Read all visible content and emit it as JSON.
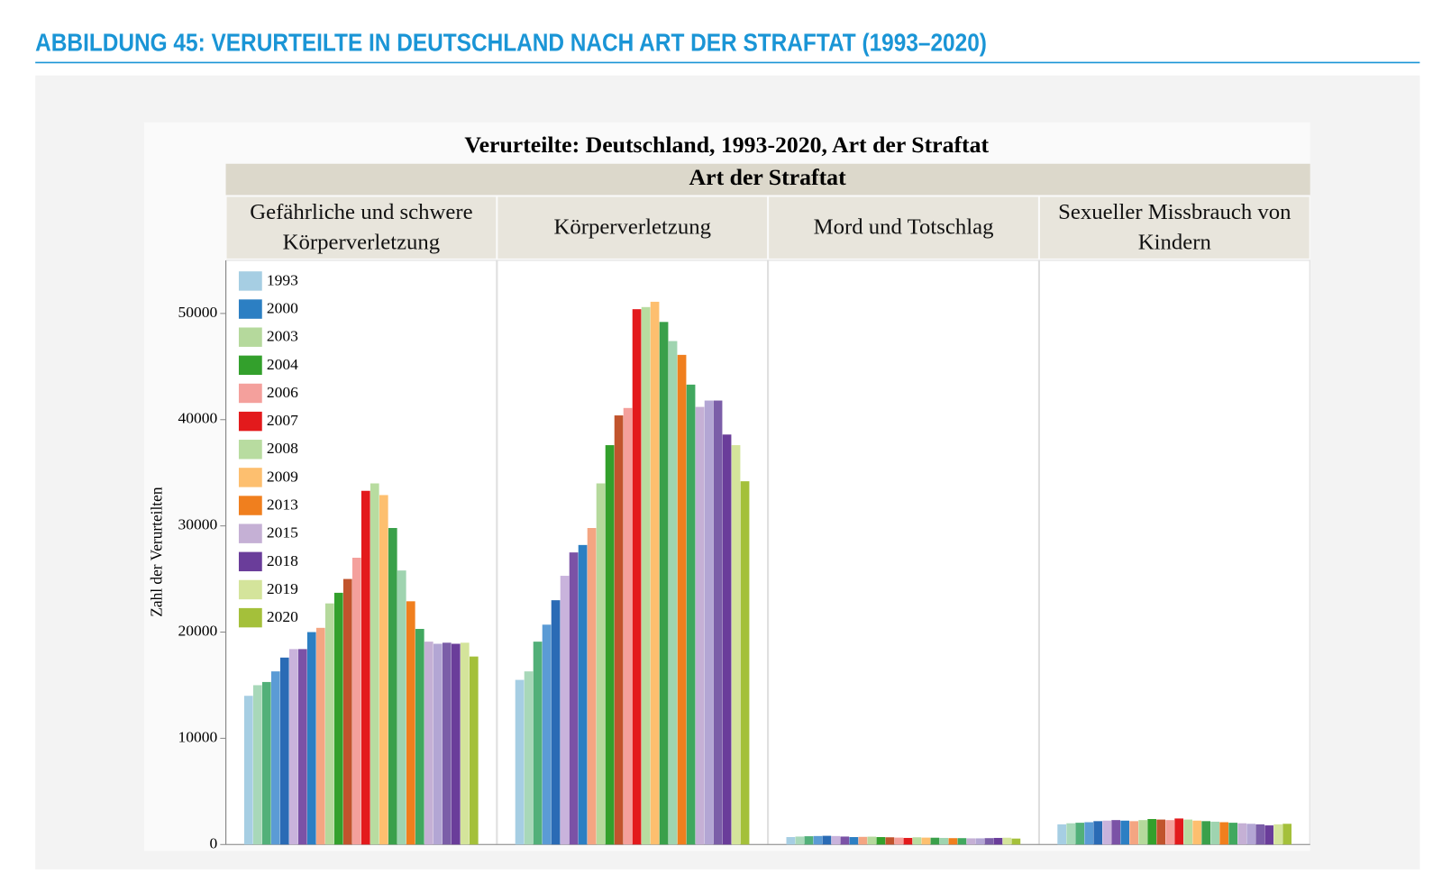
{
  "header": {
    "title": "ABBILDUNG 45: VERURTEILTE IN DEUTSCHLAND NACH ART DER STRAFTAT (1993–2020)"
  },
  "chart_data": {
    "type": "bar",
    "title": "Verurteilte: Deutschland, 1993-2020, Art der Straftat",
    "facet_title": "Art der Straftat",
    "categories": [
      "Gefährliche und schwere Körperverletzung",
      "Körperverletzung",
      "Mord und Totschlag",
      "Sexueller Missbrauch von Kindern"
    ],
    "ylabel": "Zahl der Verurteilten",
    "ylim": [
      0,
      55000
    ],
    "yticks": [
      0,
      10000,
      20000,
      30000,
      40000,
      50000
    ],
    "legend": "top-left",
    "series": [
      {
        "name": "1993",
        "color": "#a6cee3",
        "values": [
          14000,
          15500,
          700,
          1900
        ]
      },
      {
        "name": null,
        "color": "#a8d8b9",
        "values": [
          15000,
          16300,
          750,
          2000
        ]
      },
      {
        "name": null,
        "color": "#52b079",
        "values": [
          15300,
          19100,
          780,
          2050
        ]
      },
      {
        "name": null,
        "color": "#5b9bd5",
        "values": [
          16300,
          20700,
          800,
          2100
        ]
      },
      {
        "name": null,
        "color": "#2a6bb5",
        "values": [
          17600,
          23000,
          820,
          2200
        ]
      },
      {
        "name": null,
        "color": "#c9b3dc",
        "values": [
          18400,
          25300,
          800,
          2250
        ]
      },
      {
        "name": null,
        "color": "#7b52a6",
        "values": [
          18400,
          27500,
          750,
          2300
        ]
      },
      {
        "name": "2000",
        "color": "#2c7fc3",
        "values": [
          20000,
          28200,
          700,
          2250
        ]
      },
      {
        "name": null,
        "color": "#f4a582",
        "values": [
          20400,
          29800,
          720,
          2200
        ]
      },
      {
        "name": "2003",
        "color": "#b5d99c",
        "values": [
          22700,
          34000,
          740,
          2300
        ]
      },
      {
        "name": "2004",
        "color": "#33a02c",
        "values": [
          23700,
          37600,
          700,
          2400
        ]
      },
      {
        "name": null,
        "color": "#c1542d",
        "values": [
          25000,
          40400,
          680,
          2350
        ]
      },
      {
        "name": "2006",
        "color": "#f4a09c",
        "values": [
          27000,
          41100,
          650,
          2300
        ]
      },
      {
        "name": "2007",
        "color": "#e31a1c",
        "values": [
          33300,
          50400,
          620,
          2450
        ]
      },
      {
        "name": "2008",
        "color": "#b8dca0",
        "values": [
          34000,
          50600,
          680,
          2350
        ]
      },
      {
        "name": "2009",
        "color": "#fdbf6f",
        "values": [
          32900,
          51100,
          650,
          2250
        ]
      },
      {
        "name": null,
        "color": "#3aa04a",
        "values": [
          29800,
          49200,
          640,
          2200
        ]
      },
      {
        "name": null,
        "color": "#9fd4b0",
        "values": [
          25800,
          47400,
          620,
          2150
        ]
      },
      {
        "name": "2013",
        "color": "#f07f1e",
        "values": [
          22900,
          46100,
          600,
          2100
        ]
      },
      {
        "name": null,
        "color": "#41a85f",
        "values": [
          20300,
          43300,
          600,
          2050
        ]
      },
      {
        "name": "2015",
        "color": "#c5b0d5",
        "values": [
          19100,
          41200,
          580,
          2000
        ]
      },
      {
        "name": null,
        "color": "#b3a6d4",
        "values": [
          18900,
          41800,
          580,
          1950
        ]
      },
      {
        "name": null,
        "color": "#7b5ea8",
        "values": [
          19000,
          41800,
          600,
          1900
        ]
      },
      {
        "name": "2018",
        "color": "#6a3d9a",
        "values": [
          18900,
          38600,
          620,
          1800
        ]
      },
      {
        "name": "2019",
        "color": "#d4e49b",
        "values": [
          19000,
          37600,
          640,
          1900
        ]
      },
      {
        "name": "2020",
        "color": "#a4c03a",
        "values": [
          17700,
          34200,
          560,
          1950
        ]
      }
    ]
  }
}
